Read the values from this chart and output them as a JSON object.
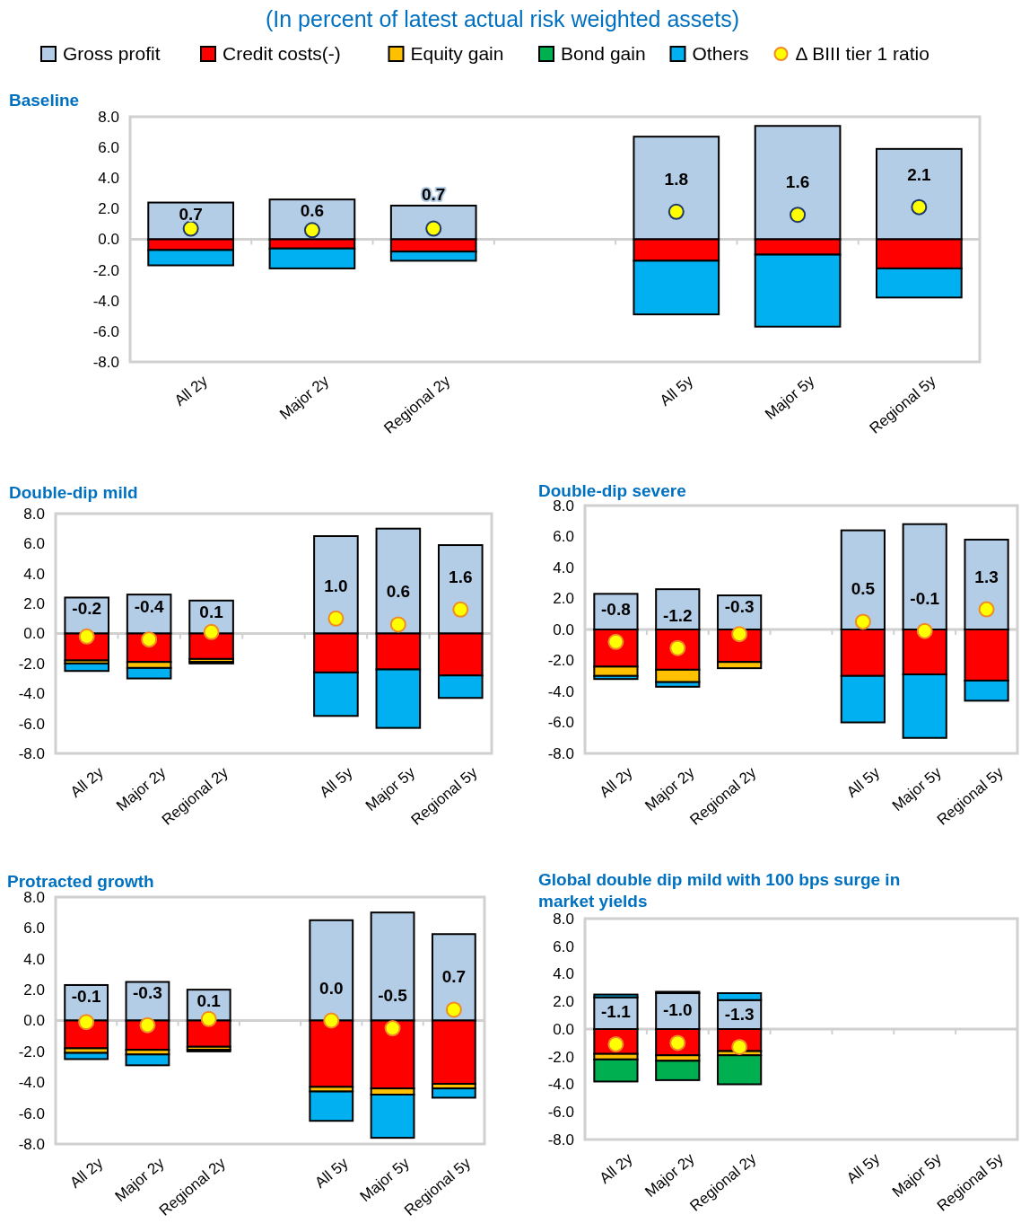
{
  "chart_data": [
    {
      "type": "bar",
      "stacked": true,
      "title": "Baseline",
      "subtitle": "(In percent of latest actual risk weighted assets)",
      "legend": "top",
      "marker": "circle",
      "ylim": [
        -8,
        8
      ],
      "yticks": [
        {
          "value": -8,
          "label": "-8.0"
        },
        {
          "value": -6,
          "label": "-6.0"
        },
        {
          "value": -4,
          "label": "-4.0"
        },
        {
          "value": -2,
          "label": "-2.0"
        },
        {
          "value": 0,
          "label": "0.0"
        },
        {
          "value": 2,
          "label": "2.0"
        },
        {
          "value": 4,
          "label": "4.0"
        },
        {
          "value": 6,
          "label": "6.0"
        },
        {
          "value": 8,
          "label": "8.0"
        }
      ],
      "categories": [
        "All 2y",
        "Major 2y",
        "Regional 2y",
        null,
        "All 5y",
        "Major 5y",
        "Regional 5y"
      ],
      "series": [
        {
          "name": "Gross profit",
          "color": "#b4cde6",
          "values": [
            2.4,
            2.6,
            2.2,
            null,
            6.7,
            7.4,
            5.9
          ]
        },
        {
          "name": "Credit costs(-)",
          "color": "#ff0000",
          "values": [
            -0.7,
            -0.6,
            -0.8,
            null,
            -1.4,
            -1.0,
            -1.9
          ]
        },
        {
          "name": "Equity gain",
          "color": "#ffc000",
          "values": [
            null,
            null,
            null,
            null,
            null,
            null,
            null
          ]
        },
        {
          "name": "Bond gain",
          "color": "#00b050",
          "values": [
            null,
            null,
            null,
            null,
            null,
            null,
            null
          ]
        },
        {
          "name": "Others",
          "color": "#00b0f0",
          "values": [
            -1.0,
            -1.3,
            -0.6,
            null,
            -3.5,
            -4.7,
            -1.9
          ]
        },
        {
          "name": "Δ BIII tier 1 ratio",
          "type": "scatter",
          "color": "#ffff00",
          "values": [
            0.7,
            0.6,
            0.7,
            null,
            1.8,
            1.6,
            2.1
          ],
          "value_labels": [
            "0.7",
            "0.6",
            "0.7",
            null,
            "1.8",
            "1.6",
            "2.1"
          ]
        }
      ]
    },
    {
      "type": "bar",
      "stacked": true,
      "title": "Double-dip mild",
      "legend": false,
      "marker": "circle",
      "ylim": [
        -8,
        8
      ],
      "yticks": [
        {
          "value": -8,
          "label": "-8.0"
        },
        {
          "value": -6,
          "label": "-6.0"
        },
        {
          "value": -4,
          "label": "-4.0"
        },
        {
          "value": -2,
          "label": "-2.0"
        },
        {
          "value": 0,
          "label": "0.0"
        },
        {
          "value": 2,
          "label": "2.0"
        },
        {
          "value": 4,
          "label": "4.0"
        },
        {
          "value": 6,
          "label": "6.0"
        },
        {
          "value": 8,
          "label": "8.0"
        }
      ],
      "categories": [
        "All 2y",
        "Major 2y",
        "Regional 2y",
        null,
        "All 5y",
        "Major 5y",
        "Regional 5y"
      ],
      "series": [
        {
          "color": "#b4cde6",
          "values": [
            2.4,
            2.6,
            2.2,
            null,
            6.5,
            7.0,
            5.9
          ]
        },
        {
          "color": "#ff0000",
          "values": [
            -1.8,
            -1.9,
            -1.7,
            null,
            -2.6,
            -2.4,
            -2.8
          ]
        },
        {
          "color": "#ffc000",
          "values": [
            -0.2,
            -0.4,
            -0.2,
            null,
            null,
            null,
            null
          ]
        },
        {
          "color": "#00b0f0",
          "values": [
            -0.5,
            -0.7,
            -0.1,
            null,
            -2.9,
            -3.9,
            -1.5
          ]
        },
        {
          "type": "scatter",
          "color": "#ffff00",
          "values": [
            -0.2,
            -0.4,
            0.1,
            null,
            1.0,
            0.6,
            1.6
          ],
          "value_labels": [
            "-0.2",
            "-0.4",
            "0.1",
            null,
            "1.0",
            "0.6",
            "1.6"
          ]
        }
      ]
    },
    {
      "type": "bar",
      "stacked": true,
      "title": "Double-dip severe",
      "legend": false,
      "marker": "circle",
      "ylim": [
        -8,
        8
      ],
      "yticks": [
        {
          "value": -8,
          "label": "-8.0"
        },
        {
          "value": -6,
          "label": "-6.0"
        },
        {
          "value": -4,
          "label": "-4.0"
        },
        {
          "value": -2,
          "label": "-2.0"
        },
        {
          "value": 0,
          "label": "0.0"
        },
        {
          "value": 2,
          "label": "2.0"
        },
        {
          "value": 4,
          "label": "4.0"
        },
        {
          "value": 6,
          "label": "6.0"
        },
        {
          "value": 8,
          "label": "8.0"
        }
      ],
      "categories": [
        "All 2y",
        "Major 2y",
        "Regional 2y",
        null,
        "All 5y",
        "Major 5y",
        "Regional 5y"
      ],
      "series": [
        {
          "color": "#b4cde6",
          "values": [
            2.3,
            2.6,
            2.2,
            null,
            6.4,
            6.8,
            5.8
          ]
        },
        {
          "color": "#ff0000",
          "values": [
            -2.4,
            -2.6,
            -2.1,
            null,
            -3.0,
            -2.9,
            -3.3
          ]
        },
        {
          "color": "#ffc000",
          "values": [
            -0.6,
            -0.8,
            -0.4,
            null,
            null,
            null,
            null
          ]
        },
        {
          "color": "#00b0f0",
          "values": [
            -0.2,
            -0.3,
            null,
            null,
            -3.0,
            -4.1,
            -1.3
          ]
        },
        {
          "type": "scatter",
          "color": "#ffff00",
          "values": [
            -0.8,
            -1.2,
            -0.3,
            null,
            0.5,
            -0.1,
            1.3
          ],
          "value_labels": [
            "-0.8",
            "-1.2",
            "-0.3",
            null,
            "0.5",
            "-0.1",
            "1.3"
          ]
        }
      ]
    },
    {
      "type": "bar",
      "stacked": true,
      "title": "Protracted growth",
      "legend": false,
      "marker": "circle",
      "ylim": [
        -8,
        8
      ],
      "yticks": [
        {
          "value": -8,
          "label": "-8.0"
        },
        {
          "value": -6,
          "label": "-6.0"
        },
        {
          "value": -4,
          "label": "-4.0"
        },
        {
          "value": -2,
          "label": "-2.0"
        },
        {
          "value": 0,
          "label": "0.0"
        },
        {
          "value": 2,
          "label": "2.0"
        },
        {
          "value": 4,
          "label": "4.0"
        },
        {
          "value": 6,
          "label": "6.0"
        },
        {
          "value": 8,
          "label": "8.0"
        }
      ],
      "categories": [
        "All 2y",
        "Major 2y",
        "Regional 2y",
        null,
        "All 5y",
        "Major 5y",
        "Regional 5y"
      ],
      "series": [
        {
          "color": "#b4cde6",
          "values": [
            2.3,
            2.5,
            2.0,
            null,
            6.5,
            7.0,
            5.6
          ]
        },
        {
          "color": "#ff0000",
          "values": [
            -1.8,
            -1.9,
            -1.7,
            null,
            -4.3,
            -4.4,
            -4.1
          ]
        },
        {
          "color": "#ffc000",
          "values": [
            -0.3,
            -0.3,
            -0.2,
            null,
            -0.3,
            -0.4,
            -0.3
          ]
        },
        {
          "color": "#00b0f0",
          "values": [
            -0.4,
            -0.7,
            -0.1,
            null,
            -1.9,
            -2.8,
            -0.6
          ]
        },
        {
          "type": "scatter",
          "color": "#ffff00",
          "values": [
            -0.1,
            -0.3,
            0.1,
            null,
            0.0,
            -0.5,
            0.7
          ],
          "value_labels": [
            "-0.1",
            "-0.3",
            "0.1",
            null,
            "0.0",
            "-0.5",
            "0.7"
          ]
        }
      ]
    },
    {
      "type": "bar",
      "stacked": true,
      "title": "Global double dip mild with 100 bps surge in market yields",
      "legend": false,
      "marker": "circle",
      "ylim": [
        -8,
        8
      ],
      "yticks": [
        {
          "value": -8,
          "label": "-8.0"
        },
        {
          "value": -6,
          "label": "-6.0"
        },
        {
          "value": -4,
          "label": "-4.0"
        },
        {
          "value": -2,
          "label": "-2.0"
        },
        {
          "value": 0,
          "label": "0.0"
        },
        {
          "value": 2,
          "label": "2.0"
        },
        {
          "value": 4,
          "label": "4.0"
        },
        {
          "value": 6,
          "label": "6.0"
        },
        {
          "value": 8,
          "label": "8.0"
        }
      ],
      "categories": [
        "All 2y",
        "Major 2y",
        "Regional 2y",
        null,
        "All 5y",
        "Major 5y",
        "Regional 5y"
      ],
      "series": [
        {
          "color": "#b4cde6",
          "values": [
            2.3,
            2.6,
            2.1,
            null,
            null,
            null,
            null
          ]
        },
        {
          "color": "#ff0000",
          "values": [
            -1.8,
            -1.9,
            -1.6,
            null,
            null,
            null,
            null
          ]
        },
        {
          "color": "#ffc000",
          "values": [
            -0.4,
            -0.4,
            -0.3,
            null,
            null,
            null,
            null
          ]
        },
        {
          "color": "#00b050",
          "values": [
            -1.6,
            -1.4,
            -2.1,
            null,
            null,
            null,
            null
          ]
        },
        {
          "color": "#00b0f0",
          "values": [
            0.2,
            0.1,
            0.5,
            null,
            null,
            null,
            null
          ]
        },
        {
          "type": "scatter",
          "color": "#ffff00",
          "values": [
            -1.1,
            -1.0,
            -1.3,
            null,
            null,
            null,
            null
          ],
          "value_labels": [
            "-1.1",
            "-1.0",
            "-1.3",
            null,
            null,
            null,
            null
          ]
        }
      ]
    }
  ]
}
